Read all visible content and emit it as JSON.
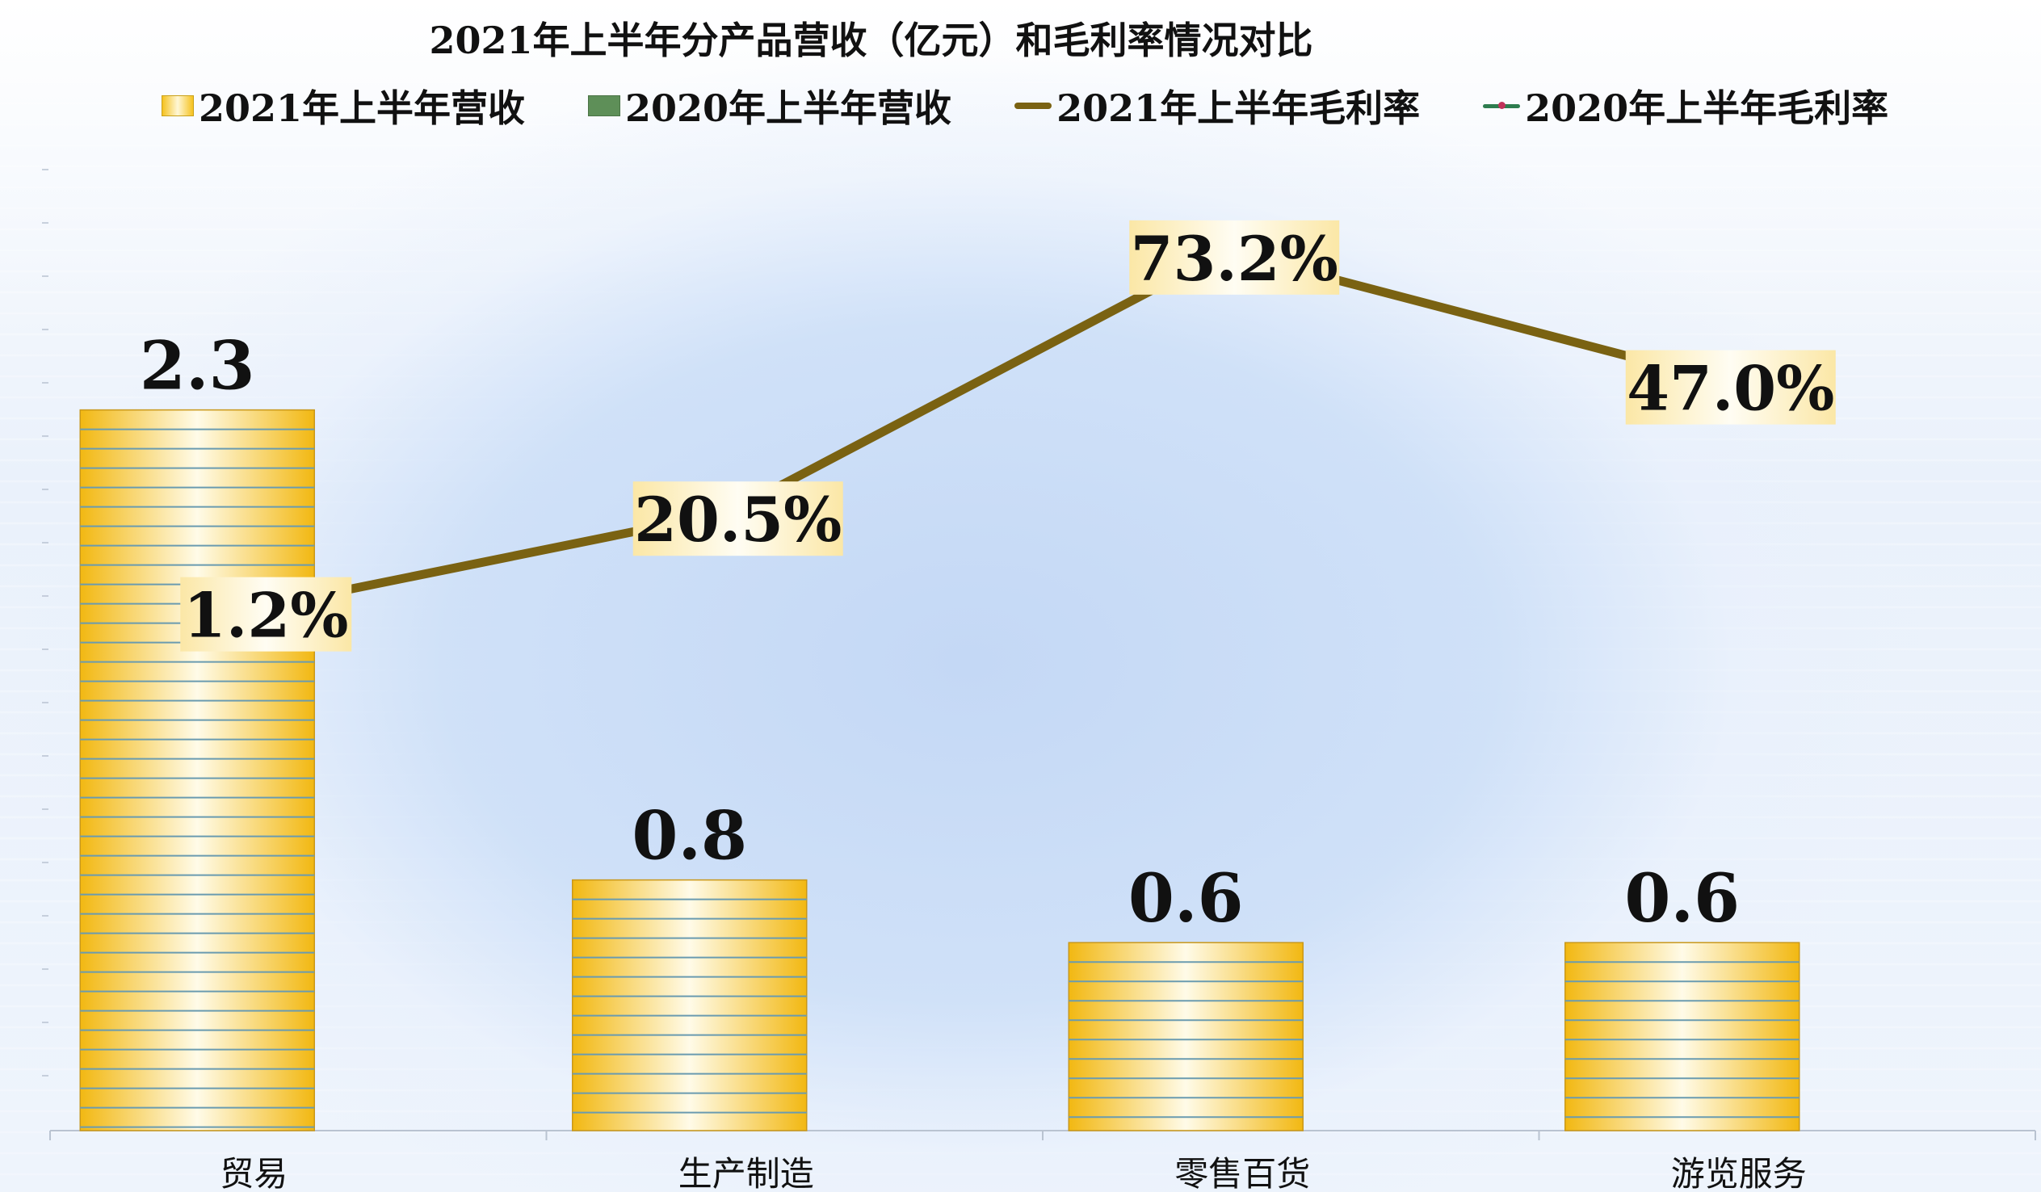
{
  "chart_data": {
    "type": "bar",
    "title": "2021年上半年分产品营收（亿元）和毛利率情况对比",
    "categories": [
      "贸易",
      "生产制造",
      "零售百货",
      "游览服务"
    ],
    "series": [
      {
        "name": "2021年上半年营收",
        "kind": "bar",
        "values": [
          2.3,
          0.8,
          0.6,
          0.6
        ],
        "labels": [
          "2.3",
          "0.8",
          "0.6",
          "0.6"
        ]
      },
      {
        "name": "2020年上半年营收",
        "kind": "bar",
        "values": [
          null,
          null,
          null,
          null
        ]
      },
      {
        "name": "2021年上半年毛利率",
        "kind": "line",
        "values": [
          1.2,
          20.5,
          73.2,
          47.0
        ],
        "labels": [
          "1.2%",
          "20.5%",
          "73.2%",
          "47.0%"
        ]
      },
      {
        "name": "2020年上半年毛利率",
        "kind": "line",
        "values": [
          null,
          null,
          null,
          null
        ]
      }
    ],
    "ylim": [
      0,
      2.5
    ],
    "y2lim": [
      0,
      100
    ],
    "legend_position": "top",
    "colors": {
      "bar_2021": "#f5c21f",
      "bar_2020": "#5e8f58",
      "line_2021": "#7a6212",
      "line_2020": "#2e7d4f"
    }
  }
}
